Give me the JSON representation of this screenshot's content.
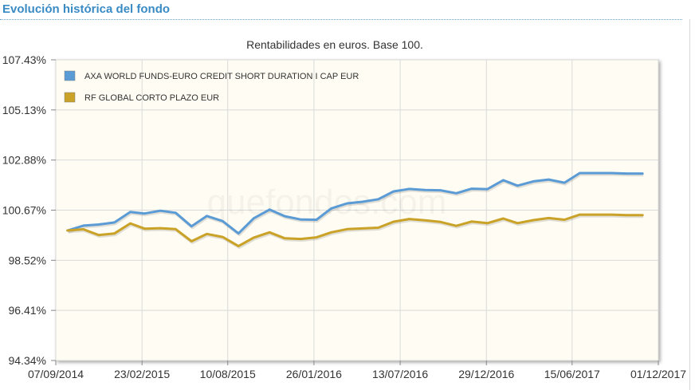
{
  "header": {
    "title": "Evolución histórica del fondo"
  },
  "watermark": "quefondos.com",
  "chart_data": {
    "type": "line",
    "title": "Rentabilidades en euros. Base 100.",
    "xlabel": "",
    "ylabel": "",
    "ylim": [
      94.34,
      107.43
    ],
    "xlim": [
      "07/09/2014",
      "01/12/2017"
    ],
    "y_ticks": [
      "107.43%",
      "105.13%",
      "102.88%",
      "100.67%",
      "98.52%",
      "96.41%",
      "94.34%"
    ],
    "x_ticks": [
      "07/09/2014",
      "23/02/2015",
      "10/08/2015",
      "26/01/2016",
      "13/07/2016",
      "29/12/2016",
      "15/06/2017",
      "01/12/2017"
    ],
    "grid": true,
    "legend_position": "top-left",
    "x": [
      "2014-09-30",
      "2014-10-31",
      "2014-11-30",
      "2014-12-31",
      "2015-01-31",
      "2015-02-28",
      "2015-03-31",
      "2015-04-30",
      "2015-05-31",
      "2015-06-30",
      "2015-07-31",
      "2015-08-31",
      "2015-09-30",
      "2015-10-31",
      "2015-11-30",
      "2015-12-31",
      "2016-01-31",
      "2016-02-29",
      "2016-03-31",
      "2016-04-30",
      "2016-05-31",
      "2016-06-30",
      "2016-07-31",
      "2016-08-31",
      "2016-09-30",
      "2016-10-31",
      "2016-11-30",
      "2016-12-31",
      "2017-01-31",
      "2017-02-28",
      "2017-03-31",
      "2017-04-30",
      "2017-05-31",
      "2017-06-30",
      "2017-07-31",
      "2017-08-31",
      "2017-09-30",
      "2017-10-31"
    ],
    "series": [
      {
        "name": "AXA WORLD FUNDS-EURO CREDIT SHORT DURATION I CAP EUR",
        "color": "#5b9bd5",
        "values": [
          100.0,
          100.21,
          100.26,
          100.35,
          100.81,
          100.74,
          100.86,
          100.77,
          100.18,
          100.63,
          100.41,
          99.87,
          100.53,
          100.91,
          100.62,
          100.48,
          100.47,
          100.96,
          101.18,
          101.25,
          101.36,
          101.7,
          101.81,
          101.76,
          101.75,
          101.62,
          101.82,
          101.8,
          102.19,
          101.95,
          102.14,
          102.22,
          102.08,
          102.5,
          102.5,
          102.5,
          102.48,
          102.48
        ]
      },
      {
        "name": "RF GLOBAL CORTO PLAZO EUR",
        "color": "#c9a227",
        "values": [
          100.0,
          100.05,
          99.8,
          99.87,
          100.31,
          100.08,
          100.1,
          100.06,
          99.53,
          99.85,
          99.72,
          99.32,
          99.69,
          99.92,
          99.66,
          99.63,
          99.7,
          99.92,
          100.06,
          100.09,
          100.12,
          100.38,
          100.5,
          100.44,
          100.37,
          100.2,
          100.39,
          100.32,
          100.52,
          100.32,
          100.45,
          100.54,
          100.47,
          100.69,
          100.69,
          100.69,
          100.67,
          100.67
        ]
      }
    ]
  }
}
